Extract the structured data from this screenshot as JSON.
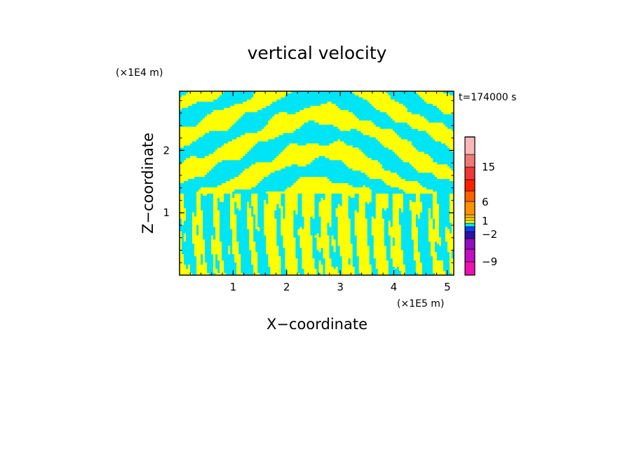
{
  "chart_data": {
    "type": "heatmap",
    "title": "vertical velocity",
    "time_label": "t=174000 s",
    "xlabel": "X−coordinate",
    "ylabel": "Z−coordinate",
    "x_unit": "(×1E5 m)",
    "y_unit": "(×1E4 m)",
    "xlim": [
      0,
      5.12
    ],
    "ylim": [
      0,
      2.95
    ],
    "x_ticks": [
      1,
      2,
      3,
      4,
      5
    ],
    "x_tick_labels": [
      "1",
      "2",
      "3",
      "4",
      "5"
    ],
    "y_ticks": [
      1,
      2
    ],
    "y_tick_labels": [
      "1",
      "2"
    ],
    "field_colors": {
      "positive": "#ffff00",
      "negative": "#00e5f5"
    },
    "colorbar": {
      "bands": [
        {
          "color": "#ee10b0"
        },
        {
          "color": "#c010c0"
        },
        {
          "color": "#9010c0"
        },
        {
          "color": "#3010a8"
        },
        {
          "color": "#1040ff"
        },
        {
          "color": "#00e5f5"
        },
        {
          "color": "#ffff00"
        },
        {
          "color": "#ffe000"
        },
        {
          "color": "#ffc000"
        },
        {
          "color": "#ff9000"
        },
        {
          "color": "#ff6000"
        },
        {
          "color": "#ff2000"
        },
        {
          "color": "#ee3838"
        },
        {
          "color": "#f07878"
        },
        {
          "color": "#f8b8b8"
        },
        {
          "color": "#fee8e0"
        }
      ],
      "labels": [
        "15",
        "6",
        "1",
        "−2",
        "−9"
      ]
    }
  }
}
